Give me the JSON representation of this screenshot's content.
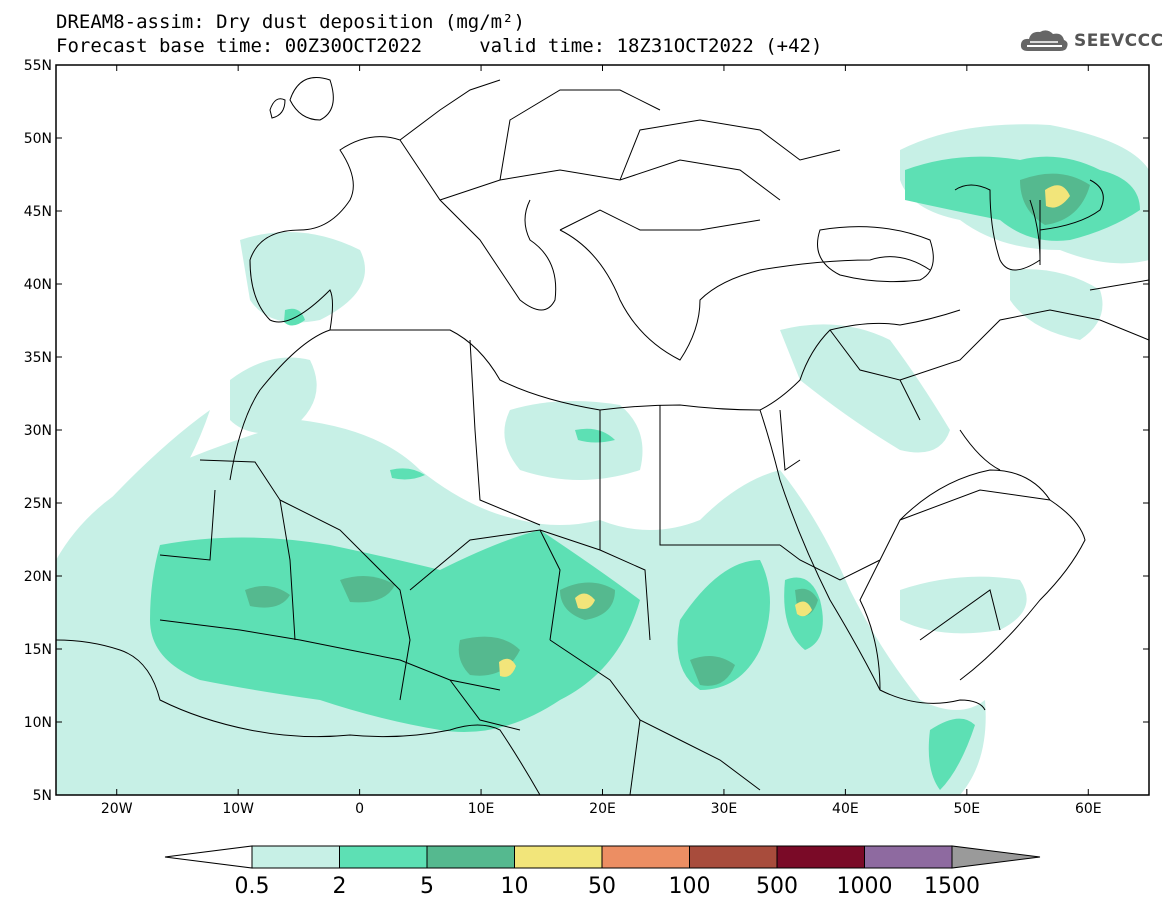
{
  "title": {
    "line1": "DREAM8-assim: Dry dust deposition (mg/m²)",
    "line2": "Forecast base time: 00Z30OCT2022     valid time: 18Z31OCT2022 (+42)"
  },
  "logo": {
    "text": "SEEVCCC",
    "icon": "cloud-icon"
  },
  "map": {
    "lon_range": [
      -25,
      65
    ],
    "lat_range": [
      5,
      55
    ],
    "lat_ticks": [
      "55N",
      "50N",
      "45N",
      "40N",
      "35N",
      "30N",
      "25N",
      "20N",
      "15N",
      "10N",
      "5N"
    ],
    "lon_ticks": [
      "20W",
      "10W",
      "0",
      "10E",
      "20E",
      "30E",
      "40E",
      "50E",
      "60E"
    ]
  },
  "colorbar": {
    "labels": [
      "0.5",
      "2",
      "5",
      "10",
      "50",
      "100",
      "500",
      "1000",
      "1500"
    ],
    "colors": [
      "#c7f0e6",
      "#5de0b4",
      "#55b98f",
      "#f2e57a",
      "#ec8e63",
      "#a84c3c",
      "#7a0a27",
      "#8e6aa0",
      "#9a9a9a"
    ],
    "under_color": "#ffffff"
  }
}
